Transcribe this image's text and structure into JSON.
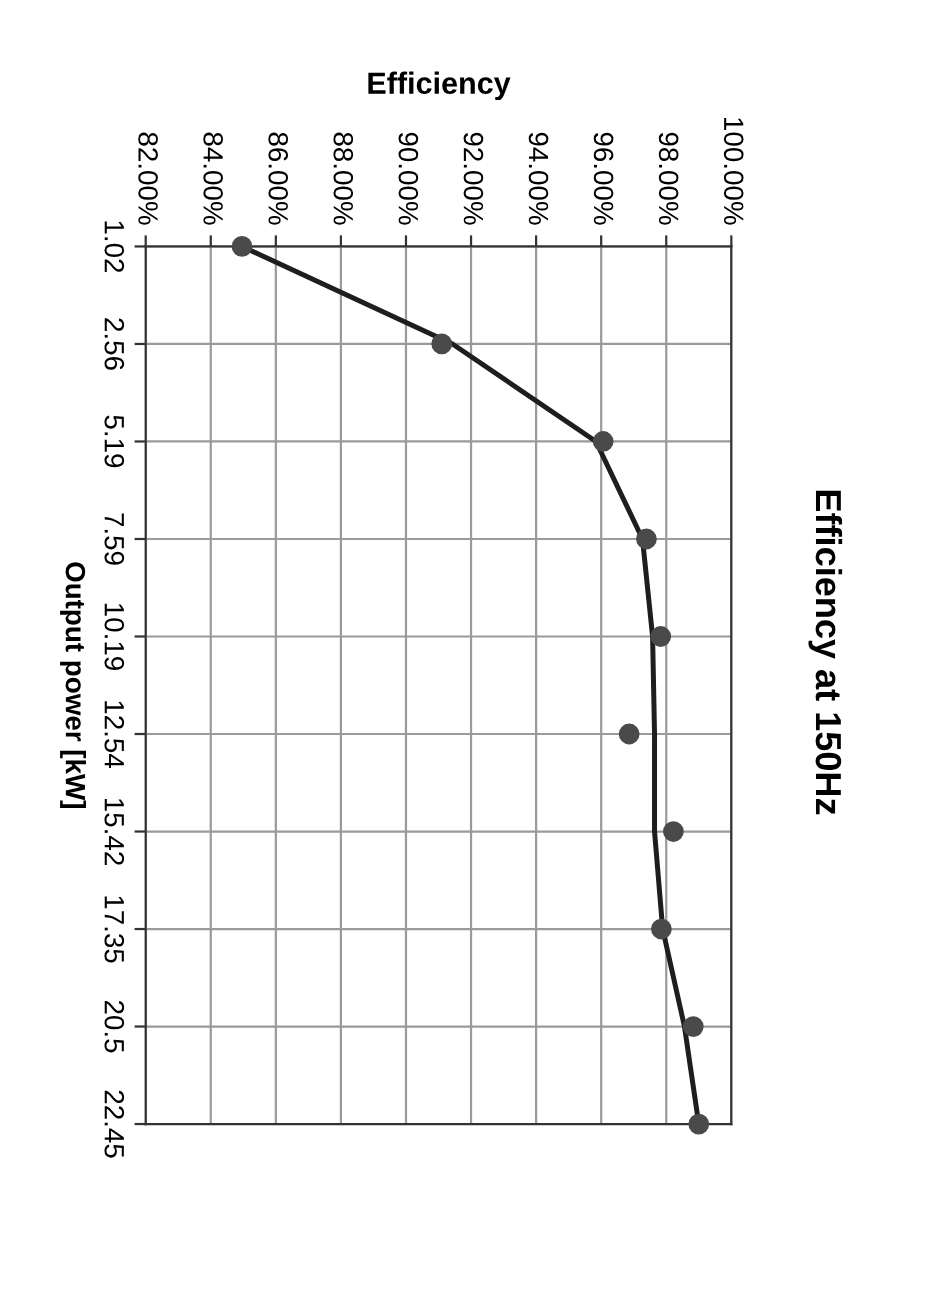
{
  "chart_data": {
    "type": "scatter",
    "orientation": "horizontal",
    "title": "Efficiency at 150Hz",
    "xlabel": "Efficiency",
    "ylabel": "Output power [kW]",
    "categories": [
      "1.02",
      "2.56",
      "5.19",
      "7.59",
      "10.19",
      "12.54",
      "15.42",
      "17.35",
      "20.5",
      "22.45"
    ],
    "series": [
      {
        "color": "#4a4a4a",
        "marker": "circle",
        "values": [
          84.96,
          91.1,
          96.06,
          97.39,
          97.83,
          96.86,
          98.22,
          97.85,
          98.83,
          99.0
        ]
      },
      {
        "type": "line",
        "color": "#1e1e1e",
        "marker": "none",
        "line_style": "solid",
        "values": [
          84.96,
          91.43,
          95.84,
          97.27,
          97.58,
          97.64,
          97.64,
          97.89,
          98.56,
          99.0
        ]
      }
    ],
    "xlim": [
      82,
      100
    ],
    "xticks": [
      {
        "value": 82,
        "label": "82.00%"
      },
      {
        "value": 84,
        "label": "84.00%"
      },
      {
        "value": 86,
        "label": "86.00%"
      },
      {
        "value": 88,
        "label": "88.00%"
      },
      {
        "value": 90,
        "label": "90.00%"
      },
      {
        "value": 92,
        "label": "92.00%"
      },
      {
        "value": 94,
        "label": "94.00%"
      },
      {
        "value": 96,
        "label": "96.00%"
      },
      {
        "value": 98,
        "label": "98.00%"
      },
      {
        "value": 100,
        "label": "100.00%"
      }
    ],
    "grid": true
  }
}
